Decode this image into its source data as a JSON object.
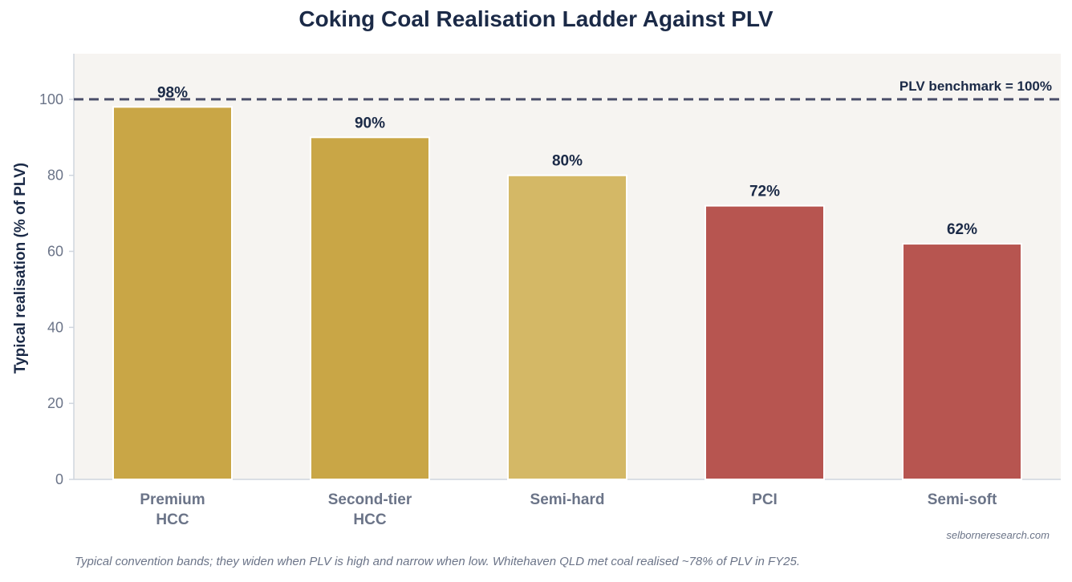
{
  "chart_data": {
    "type": "bar",
    "title": "Coking Coal Realisation Ladder Against PLV",
    "ylabel": "Typical realisation (% of PLV)",
    "xlabel": "",
    "categories": [
      [
        "Premium",
        "HCC"
      ],
      [
        "Second-tier",
        "HCC"
      ],
      [
        "Semi-hard"
      ],
      [
        "PCI"
      ],
      [
        "Semi-soft"
      ]
    ],
    "values": [
      98,
      90,
      80,
      72,
      62
    ],
    "data_labels": [
      "98%",
      "90%",
      "80%",
      "72%",
      "62%"
    ],
    "bar_colors": [
      "#c9a646",
      "#c9a646",
      "#d4b866",
      "#b75550",
      "#b75550"
    ],
    "ylim": [
      0,
      112
    ],
    "yticks": [
      0,
      20,
      40,
      60,
      80,
      100
    ],
    "reference_line": {
      "value": 100,
      "label": "PLV benchmark = 100%",
      "color": "#4a4e69"
    },
    "grid": false,
    "plot_background": "#f6f4f1"
  },
  "footnote": "Typical convention bands; they widen when PLV is high and narrow when low. Whitehaven QLD met coal realised ~78% of PLV in FY25.",
  "source": "selborneresearch.com"
}
